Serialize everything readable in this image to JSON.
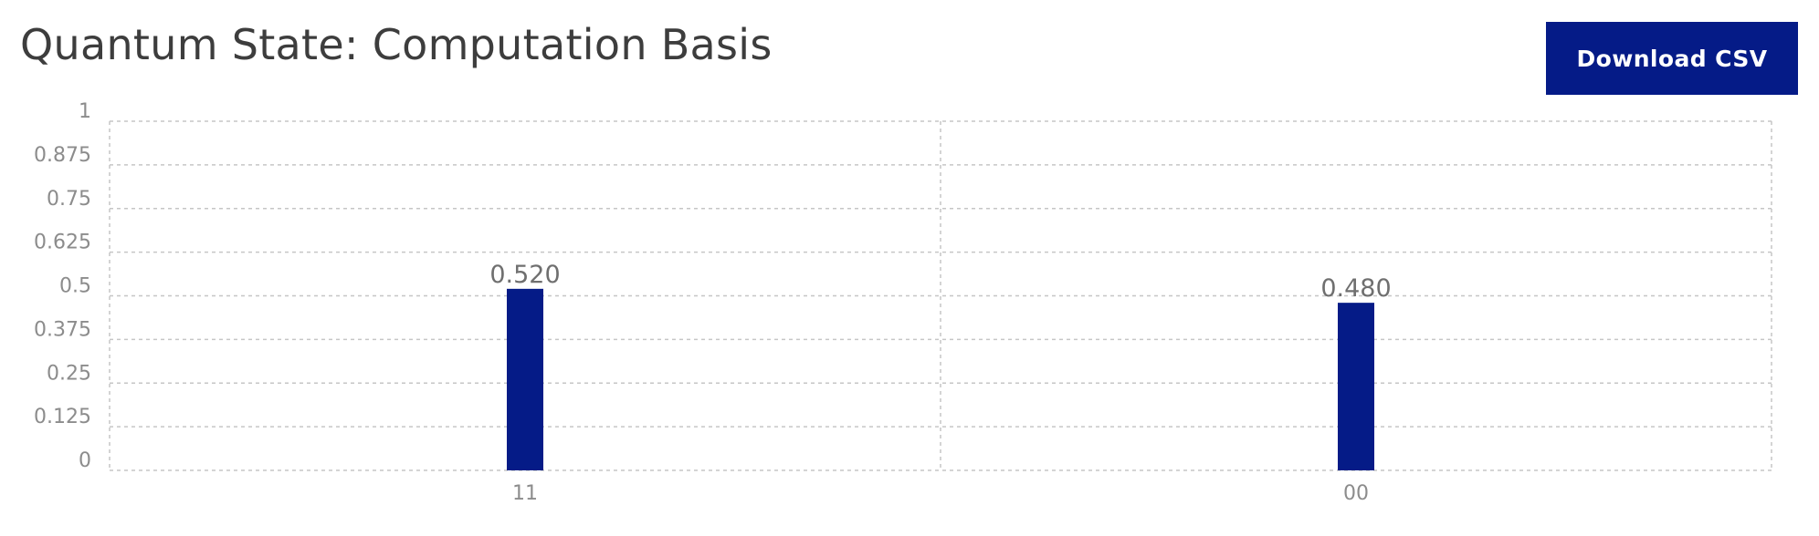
{
  "header": {
    "title": "Quantum State: Computation Basis",
    "download_label": "Download CSV"
  },
  "colors": {
    "bar": "#051b87",
    "grid": "#c6c6c6",
    "tick_text": "#8c8c8c",
    "value_label": "#6f6f6f",
    "title": "#3d3d3d"
  },
  "chart_data": {
    "type": "bar",
    "title": "Quantum State: Computation Basis",
    "xlabel": "",
    "ylabel": "",
    "categories": [
      "11",
      "00"
    ],
    "values": [
      0.52,
      0.48
    ],
    "value_labels": [
      "0.520",
      "0.480"
    ],
    "ylim": [
      0,
      1
    ],
    "yticks": [
      0,
      0.125,
      0.25,
      0.375,
      0.5,
      0.625,
      0.75,
      0.875,
      1
    ],
    "ytick_labels": [
      "0",
      "0.125",
      "0.25",
      "0.375",
      "0.5",
      "0.625",
      "0.75",
      "0.875",
      "1"
    ],
    "grid": true,
    "legend": "none"
  }
}
